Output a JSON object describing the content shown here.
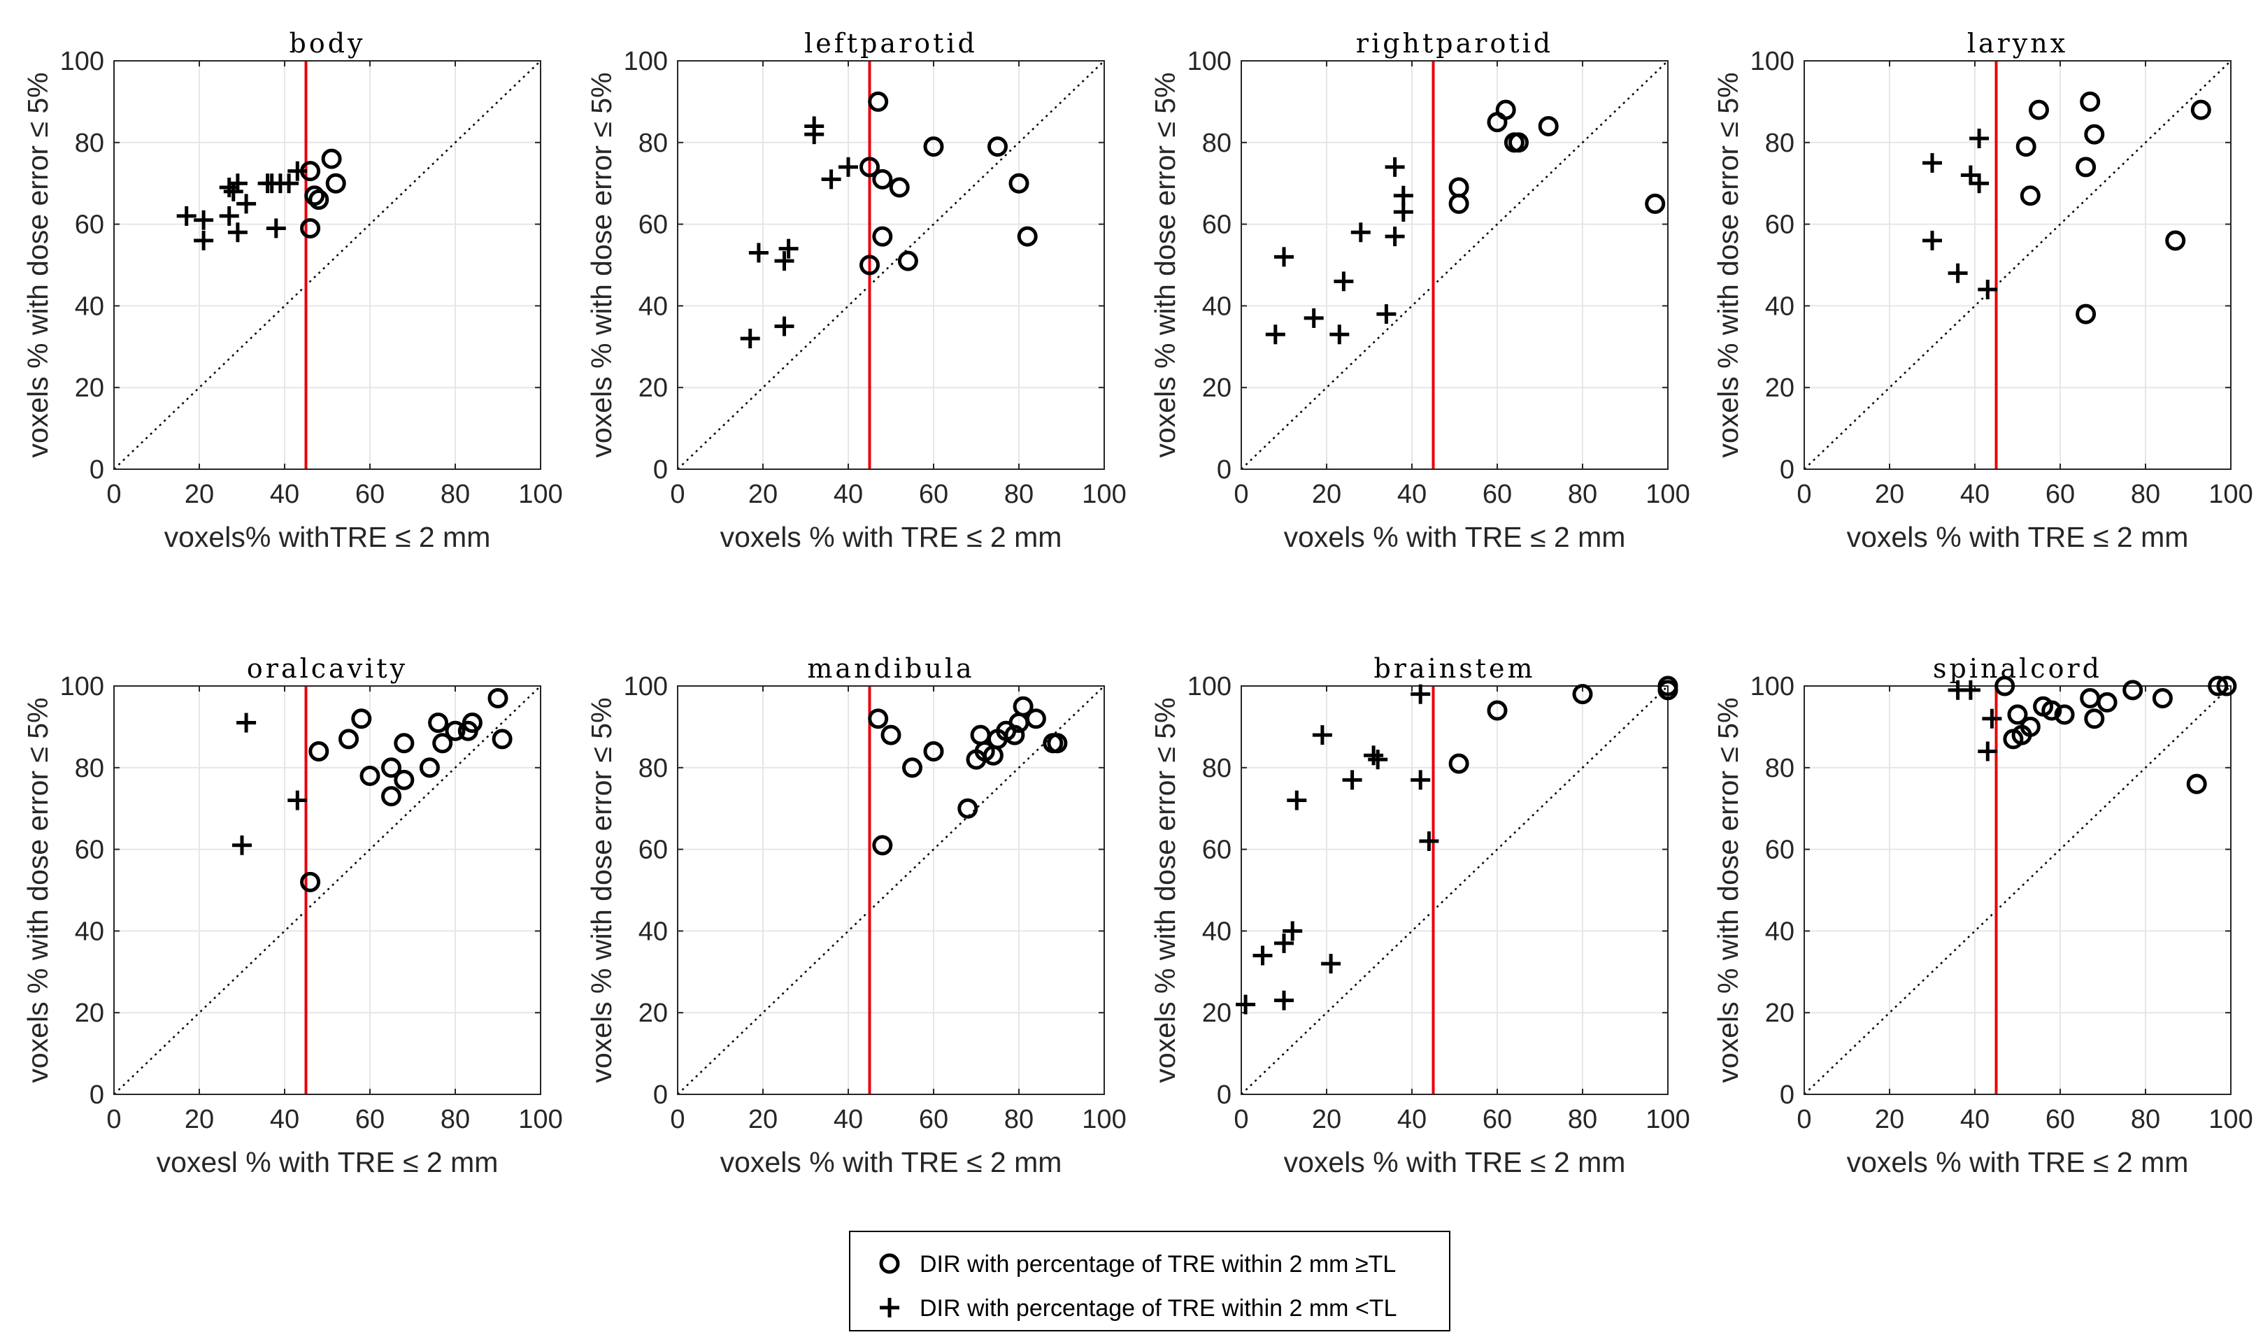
{
  "chart_data": [
    {
      "type": "scatter",
      "title": "body",
      "xlabel": "voxels% withTRE ≤ 2 mm",
      "ylabel": "voxels % with dose error  ≤ 5%",
      "xlim": [
        0,
        100
      ],
      "ylim": [
        0,
        100
      ],
      "xticks": [
        0,
        20,
        40,
        60,
        80,
        100
      ],
      "yticks": [
        0,
        20,
        40,
        60,
        80,
        100
      ],
      "grid": true,
      "threshold_x": 45,
      "series": [
        {
          "name": "DIR with percentage of TRE within 2 mm  ≥TL",
          "marker": "o",
          "points": [
            [
              46,
              73
            ],
            [
              46,
              59
            ],
            [
              47,
              67
            ],
            [
              48,
              66
            ],
            [
              51,
              76
            ],
            [
              52,
              70
            ]
          ]
        },
        {
          "name": "DIR with percentage of TRE within 2 mm <TL",
          "marker": "+",
          "points": [
            [
              17,
              62
            ],
            [
              21,
              61
            ],
            [
              21,
              56
            ],
            [
              27,
              62
            ],
            [
              27,
              69
            ],
            [
              28,
              68
            ],
            [
              29,
              70
            ],
            [
              29,
              58
            ],
            [
              31,
              65
            ],
            [
              36,
              70
            ],
            [
              37,
              70
            ],
            [
              38,
              59
            ],
            [
              39,
              70
            ],
            [
              41,
              70
            ],
            [
              43,
              73
            ]
          ]
        }
      ]
    },
    {
      "type": "scatter",
      "title": "leftparotid",
      "xlabel": "voxels % with TRE ≤ 2 mm",
      "ylabel": "voxels % with dose error  ≤ 5%",
      "xlim": [
        0,
        100
      ],
      "ylim": [
        0,
        100
      ],
      "xticks": [
        0,
        20,
        40,
        60,
        80,
        100
      ],
      "yticks": [
        0,
        20,
        40,
        60,
        80,
        100
      ],
      "grid": true,
      "threshold_x": 45,
      "series": [
        {
          "name": "DIR with percentage of TRE within 2 mm  ≥TL",
          "marker": "o",
          "points": [
            [
              47,
              90
            ],
            [
              45,
              74
            ],
            [
              48,
              71
            ],
            [
              52,
              69
            ],
            [
              60,
              79
            ],
            [
              75,
              79
            ],
            [
              80,
              70
            ],
            [
              82,
              57
            ],
            [
              48,
              57
            ],
            [
              45,
              50
            ],
            [
              54,
              51
            ]
          ]
        },
        {
          "name": "DIR with percentage of TRE within 2 mm <TL",
          "marker": "+",
          "points": [
            [
              32,
              84
            ],
            [
              32,
              82
            ],
            [
              36,
              71
            ],
            [
              40,
              74
            ],
            [
              19,
              53
            ],
            [
              26,
              54
            ],
            [
              25,
              51
            ],
            [
              25,
              35
            ],
            [
              17,
              32
            ]
          ]
        }
      ]
    },
    {
      "type": "scatter",
      "title": "rightparotid",
      "xlabel": "voxels % with TRE ≤ 2 mm",
      "ylabel": "voxels % with dose error  ≤ 5%",
      "xlim": [
        0,
        100
      ],
      "ylim": [
        0,
        100
      ],
      "xticks": [
        0,
        20,
        40,
        60,
        80,
        100
      ],
      "yticks": [
        0,
        20,
        40,
        60,
        80,
        100
      ],
      "grid": true,
      "threshold_x": 45,
      "series": [
        {
          "name": "DIR with percentage of TRE within 2 mm  ≥TL",
          "marker": "o",
          "points": [
            [
              60,
              85
            ],
            [
              62,
              88
            ],
            [
              64,
              80
            ],
            [
              65,
              80
            ],
            [
              72,
              84
            ],
            [
              51,
              69
            ],
            [
              51,
              65
            ],
            [
              97,
              65
            ]
          ]
        },
        {
          "name": "DIR with percentage of TRE within 2 mm <TL",
          "marker": "+",
          "points": [
            [
              36,
              74
            ],
            [
              38,
              67
            ],
            [
              38,
              63
            ],
            [
              36,
              57
            ],
            [
              28,
              58
            ],
            [
              24,
              46
            ],
            [
              10,
              52
            ],
            [
              8,
              33
            ],
            [
              17,
              37
            ],
            [
              23,
              33
            ],
            [
              34,
              38
            ]
          ]
        }
      ]
    },
    {
      "type": "scatter",
      "title": "larynx",
      "xlabel": "voxels % with TRE ≤ 2 mm",
      "ylabel": "voxels % with dose error  ≤ 5%",
      "xlim": [
        0,
        100
      ],
      "ylim": [
        0,
        100
      ],
      "xticks": [
        0,
        20,
        40,
        60,
        80,
        100
      ],
      "yticks": [
        0,
        20,
        40,
        60,
        80,
        100
      ],
      "grid": true,
      "threshold_x": 45,
      "series": [
        {
          "name": "DIR with percentage of TRE within 2 mm  ≥TL",
          "marker": "o",
          "points": [
            [
              55,
              88
            ],
            [
              52,
              79
            ],
            [
              53,
              67
            ],
            [
              67,
              90
            ],
            [
              68,
              82
            ],
            [
              66,
              74
            ],
            [
              93,
              88
            ],
            [
              87,
              56
            ],
            [
              66,
              38
            ]
          ]
        },
        {
          "name": "DIR with percentage of TRE within 2 mm <TL",
          "marker": "+",
          "points": [
            [
              41,
              81
            ],
            [
              39,
              72
            ],
            [
              41,
              70
            ],
            [
              30,
              75
            ],
            [
              30,
              56
            ],
            [
              36,
              48
            ],
            [
              43,
              44
            ]
          ]
        }
      ]
    },
    {
      "type": "scatter",
      "title": "oralcavity",
      "xlabel": "voxesl % with TRE ≤ 2 mm",
      "ylabel": "voxels % with dose error  ≤ 5%",
      "xlim": [
        0,
        100
      ],
      "ylim": [
        0,
        100
      ],
      "xticks": [
        0,
        20,
        40,
        60,
        80,
        100
      ],
      "yticks": [
        0,
        20,
        40,
        60,
        80,
        100
      ],
      "grid": true,
      "threshold_x": 45,
      "series": [
        {
          "name": "DIR with percentage of TRE within 2 mm  ≥TL",
          "marker": "o",
          "points": [
            [
              46,
              52
            ],
            [
              48,
              84
            ],
            [
              55,
              87
            ],
            [
              58,
              92
            ],
            [
              60,
              78
            ],
            [
              65,
              80
            ],
            [
              65,
              73
            ],
            [
              68,
              86
            ],
            [
              68,
              77
            ],
            [
              74,
              80
            ],
            [
              76,
              91
            ],
            [
              77,
              86
            ],
            [
              80,
              89
            ],
            [
              83,
              89
            ],
            [
              84,
              91
            ],
            [
              90,
              97
            ],
            [
              91,
              87
            ]
          ]
        },
        {
          "name": "DIR with percentage of TRE within 2 mm <TL",
          "marker": "+",
          "points": [
            [
              31,
              91
            ],
            [
              43,
              72
            ],
            [
              30,
              61
            ]
          ]
        }
      ]
    },
    {
      "type": "scatter",
      "title": "mandibula",
      "xlabel": "voxels % with TRE ≤ 2 mm",
      "ylabel": "voxels % with dose error  ≤ 5%",
      "xlim": [
        0,
        100
      ],
      "ylim": [
        0,
        100
      ],
      "xticks": [
        0,
        20,
        40,
        60,
        80,
        100
      ],
      "yticks": [
        0,
        20,
        40,
        60,
        80,
        100
      ],
      "grid": true,
      "threshold_x": 45,
      "series": [
        {
          "name": "DIR with percentage of TRE within 2 mm  ≥TL",
          "marker": "o",
          "points": [
            [
              47,
              92
            ],
            [
              50,
              88
            ],
            [
              48,
              61
            ],
            [
              55,
              80
            ],
            [
              60,
              84
            ],
            [
              68,
              70
            ],
            [
              70,
              82
            ],
            [
              71,
              88
            ],
            [
              72,
              84
            ],
            [
              74,
              83
            ],
            [
              75,
              87
            ],
            [
              77,
              89
            ],
            [
              79,
              88
            ],
            [
              80,
              91
            ],
            [
              81,
              95
            ],
            [
              84,
              92
            ],
            [
              88,
              86
            ],
            [
              89,
              86
            ]
          ]
        },
        {
          "name": "DIR with percentage of TRE within 2 mm <TL",
          "marker": "+",
          "points": []
        }
      ]
    },
    {
      "type": "scatter",
      "title": "brainstem",
      "xlabel": "voxels % with TRE ≤ 2 mm",
      "ylabel": "voxels % with dose error  ≤ 5%",
      "xlim": [
        0,
        100
      ],
      "ylim": [
        0,
        100
      ],
      "xticks": [
        0,
        20,
        40,
        60,
        80,
        100
      ],
      "yticks": [
        0,
        20,
        40,
        60,
        80,
        100
      ],
      "grid": true,
      "threshold_x": 45,
      "series": [
        {
          "name": "DIR with percentage of TRE within 2 mm  ≥TL",
          "marker": "o",
          "points": [
            [
              60,
              94
            ],
            [
              80,
              98
            ],
            [
              100,
              100
            ],
            [
              100,
              99
            ],
            [
              51,
              81
            ]
          ]
        },
        {
          "name": "DIR with percentage of TRE within 2 mm <TL",
          "marker": "+",
          "points": [
            [
              42,
              98
            ],
            [
              19,
              88
            ],
            [
              31,
              83
            ],
            [
              32,
              82
            ],
            [
              26,
              77
            ],
            [
              42,
              77
            ],
            [
              13,
              72
            ],
            [
              44,
              62
            ],
            [
              12,
              40
            ],
            [
              10,
              37
            ],
            [
              5,
              34
            ],
            [
              21,
              32
            ],
            [
              10,
              23
            ],
            [
              1,
              22
            ]
          ]
        }
      ]
    },
    {
      "type": "scatter",
      "title": "spinalcord",
      "xlabel": "voxels % with TRE ≤ 2 mm",
      "ylabel": "voxels % with dose error  ≤ 5%",
      "xlim": [
        0,
        100
      ],
      "ylim": [
        0,
        100
      ],
      "xticks": [
        0,
        20,
        40,
        60,
        80,
        100
      ],
      "yticks": [
        0,
        20,
        40,
        60,
        80,
        100
      ],
      "grid": true,
      "threshold_x": 45,
      "series": [
        {
          "name": "DIR with percentage of TRE within 2 mm  ≥TL",
          "marker": "o",
          "points": [
            [
              47,
              100
            ],
            [
              49,
              87
            ],
            [
              50,
              93
            ],
            [
              51,
              88
            ],
            [
              53,
              90
            ],
            [
              56,
              95
            ],
            [
              58,
              94
            ],
            [
              61,
              93
            ],
            [
              67,
              97
            ],
            [
              68,
              92
            ],
            [
              71,
              96
            ],
            [
              77,
              99
            ],
            [
              84,
              97
            ],
            [
              92,
              76
            ],
            [
              97,
              100
            ],
            [
              99,
              100
            ]
          ]
        },
        {
          "name": "DIR with percentage of TRE within 2 mm <TL",
          "marker": "+",
          "points": [
            [
              36,
              99
            ],
            [
              39,
              99
            ],
            [
              44,
              92
            ],
            [
              43,
              84
            ]
          ]
        }
      ]
    }
  ],
  "legend": {
    "entries": [
      {
        "marker": "o",
        "label": "DIR with percentage of TRE within 2 mm  ≥TL"
      },
      {
        "marker": "+",
        "label": "DIR with percentage of TRE within 2 mm <TL"
      }
    ]
  },
  "colors": {
    "threshold_line": "#e8000b",
    "marker": "#000000",
    "grid": "#e6e6e6",
    "axes": "#262626"
  }
}
